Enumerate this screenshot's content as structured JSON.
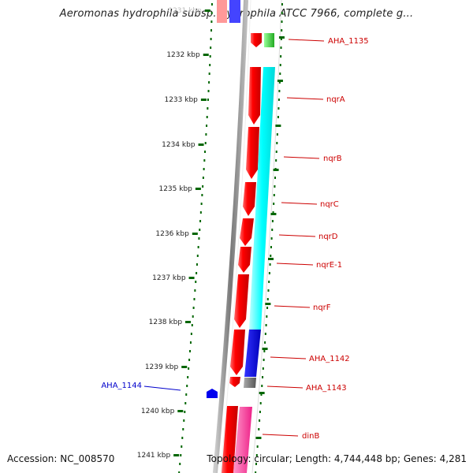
{
  "title": "Aeromonas hydrophila subsp. hydrophila ATCC 7966, complete g...",
  "accession": "Accession: NC_008570",
  "summary": "Topology: circular; Length: 4,744,448 bp; Genes: 4,281",
  "colors": {
    "red_gene": "#ff0000",
    "cyan_gene": "#00ffff",
    "blue_gene": "#0000dd",
    "green_gene": "#33cc33",
    "gray_gene": "#777777",
    "pink_gene": "#ff3399",
    "ruler_tick": "#006600",
    "label_red": "#cc0000",
    "label_blue": "#0000cc"
  },
  "ruler_labels": [
    {
      "label": "1231 kbp",
      "kbp": 1231
    },
    {
      "label": "1232 kbp",
      "kbp": 1232
    },
    {
      "label": "1233 kbp",
      "kbp": 1233
    },
    {
      "label": "1234 kbp",
      "kbp": 1234
    },
    {
      "label": "1235 kbp",
      "kbp": 1235
    },
    {
      "label": "1236 kbp",
      "kbp": 1236
    },
    {
      "label": "1237 kbp",
      "kbp": 1237
    },
    {
      "label": "1238 kbp",
      "kbp": 1238
    },
    {
      "label": "1239 kbp",
      "kbp": 1239
    },
    {
      "label": "1240 kbp",
      "kbp": 1240
    },
    {
      "label": "1241 kbp",
      "kbp": 1241
    }
  ],
  "genes": [
    {
      "name": "AHA_1135",
      "color": "red_gene"
    },
    {
      "name": "nqrA",
      "color": "red_gene"
    },
    {
      "name": "nqrB",
      "color": "red_gene"
    },
    {
      "name": "nqrC",
      "color": "red_gene"
    },
    {
      "name": "nqrD",
      "color": "red_gene"
    },
    {
      "name": "nqrE-1",
      "color": "red_gene"
    },
    {
      "name": "nqrF",
      "color": "red_gene"
    },
    {
      "name": "AHA_1142",
      "color": "red_gene"
    },
    {
      "name": "AHA_1143",
      "color": "red_gene"
    },
    {
      "name": "AHA_1144",
      "color": "blue_gene"
    },
    {
      "name": "dinB",
      "color": "red_gene"
    }
  ]
}
